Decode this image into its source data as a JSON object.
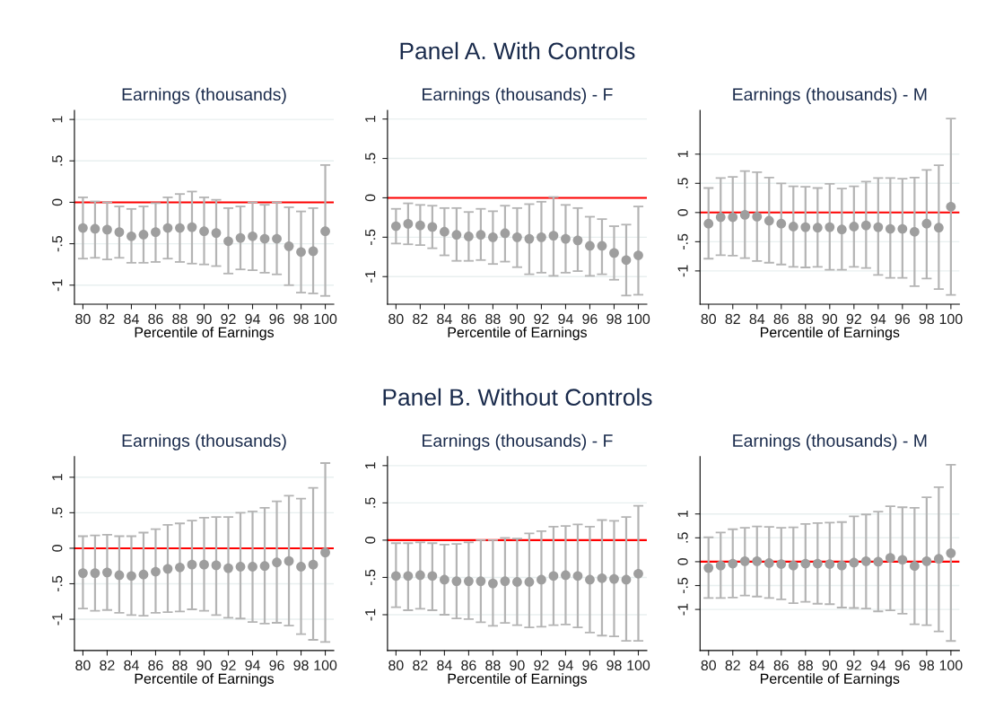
{
  "chart_data": [
    {
      "type": "scatter",
      "title": "Earnings (thousands)",
      "xlabel": "Percentile of Earnings",
      "color": "#9e9e9e",
      "marker": "circle",
      "grid": "y",
      "x": [
        80,
        81,
        82,
        83,
        84,
        85,
        86,
        87,
        88,
        89,
        90,
        91,
        92,
        93,
        94,
        95,
        96,
        97,
        98,
        99,
        100
      ],
      "values": [
        -0.31,
        -0.32,
        -0.33,
        -0.36,
        -0.41,
        -0.39,
        -0.36,
        -0.31,
        -0.31,
        -0.3,
        -0.35,
        -0.37,
        -0.47,
        -0.43,
        -0.41,
        -0.44,
        -0.44,
        -0.53,
        -0.6,
        -0.59,
        -0.35
      ],
      "errors": [
        [
          -0.68,
          0.06
        ],
        [
          -0.67,
          0.01
        ],
        [
          -0.69,
          0.0
        ],
        [
          -0.67,
          -0.05
        ],
        [
          -0.73,
          -0.08
        ],
        [
          -0.73,
          -0.05
        ],
        [
          -0.72,
          -0.01
        ],
        [
          -0.68,
          0.06
        ],
        [
          -0.72,
          0.1
        ],
        [
          -0.74,
          0.13
        ],
        [
          -0.75,
          0.06
        ],
        [
          -0.77,
          0.03
        ],
        [
          -0.86,
          -0.07
        ],
        [
          -0.81,
          -0.05
        ],
        [
          -0.82,
          0.0
        ],
        [
          -0.85,
          -0.03
        ],
        [
          -0.87,
          0.0
        ],
        [
          -1.0,
          -0.06
        ],
        [
          -1.09,
          -0.11
        ],
        [
          -1.1,
          -0.07
        ],
        [
          -1.13,
          0.45
        ]
      ],
      "xlim": [
        79.3,
        100.7
      ],
      "xticks": [
        80,
        82,
        84,
        86,
        88,
        90,
        92,
        94,
        96,
        98,
        100
      ],
      "ylim": [
        -1.23,
        1.11
      ],
      "yticks": [
        {
          "value": -1,
          "label": "-1"
        },
        {
          "value": -0.5,
          "label": "-.5"
        },
        0,
        {
          "value": 0.5,
          "label": ".5"
        },
        1
      ],
      "ref_lines": [
        {
          "axis": "y",
          "value": 0,
          "color": "#ff0000"
        }
      ]
    },
    {
      "type": "scatter",
      "title": "Earnings (thousands) - F",
      "xlabel": "Percentile of Earnings",
      "color": "#9e9e9e",
      "marker": "circle",
      "grid": "y",
      "annotations": [
        "Panel A. With Controls"
      ],
      "x": [
        80,
        81,
        82,
        83,
        84,
        85,
        86,
        87,
        88,
        89,
        90,
        91,
        92,
        93,
        94,
        95,
        96,
        97,
        98,
        99,
        100
      ],
      "values": [
        -0.36,
        -0.33,
        -0.35,
        -0.37,
        -0.43,
        -0.47,
        -0.49,
        -0.47,
        -0.5,
        -0.45,
        -0.5,
        -0.52,
        -0.5,
        -0.48,
        -0.52,
        -0.54,
        -0.61,
        -0.61,
        -0.7,
        -0.79,
        -0.73
      ],
      "errors": [
        [
          -0.58,
          -0.14
        ],
        [
          -0.59,
          -0.07
        ],
        [
          -0.6,
          -0.09
        ],
        [
          -0.64,
          -0.1
        ],
        [
          -0.73,
          -0.13
        ],
        [
          -0.8,
          -0.13
        ],
        [
          -0.8,
          -0.18
        ],
        [
          -0.79,
          -0.14
        ],
        [
          -0.84,
          -0.17
        ],
        [
          -0.81,
          -0.1
        ],
        [
          -0.88,
          -0.13
        ],
        [
          -0.97,
          -0.08
        ],
        [
          -0.95,
          -0.05
        ],
        [
          -0.99,
          0.01
        ],
        [
          -0.95,
          -0.09
        ],
        [
          -0.93,
          -0.13
        ],
        [
          -0.99,
          -0.24
        ],
        [
          -0.97,
          -0.27
        ],
        [
          -1.04,
          -0.36
        ],
        [
          -1.24,
          -0.34
        ],
        [
          -1.23,
          -0.11
        ]
      ],
      "xlim": [
        79.3,
        100.7
      ],
      "xticks": [
        80,
        82,
        84,
        86,
        88,
        90,
        92,
        94,
        96,
        98,
        100
      ],
      "ylim": [
        -1.35,
        1.11
      ],
      "yticks": [
        {
          "value": -1,
          "label": "-1"
        },
        {
          "value": -0.5,
          "label": "-.5"
        },
        0,
        {
          "value": 0.5,
          "label": ".5"
        },
        1
      ],
      "ref_lines": [
        {
          "axis": "y",
          "value": 0,
          "color": "#ff0000"
        }
      ]
    },
    {
      "type": "scatter",
      "title": "Earnings (thousands) - M",
      "xlabel": "Percentile of Earnings",
      "color": "#9e9e9e",
      "marker": "circle",
      "grid": "y",
      "x": [
        80,
        81,
        82,
        83,
        84,
        85,
        86,
        87,
        88,
        89,
        90,
        91,
        92,
        93,
        94,
        95,
        96,
        97,
        98,
        99,
        100
      ],
      "values": [
        -0.19,
        -0.08,
        -0.08,
        -0.04,
        -0.07,
        -0.14,
        -0.19,
        -0.24,
        -0.25,
        -0.26,
        -0.25,
        -0.29,
        -0.24,
        -0.22,
        -0.25,
        -0.28,
        -0.28,
        -0.33,
        -0.19,
        -0.26,
        0.1
      ],
      "errors": [
        [
          -0.79,
          0.42
        ],
        [
          -0.73,
          0.59
        ],
        [
          -0.74,
          0.61
        ],
        [
          -0.78,
          0.71
        ],
        [
          -0.83,
          0.69
        ],
        [
          -0.86,
          0.6
        ],
        [
          -0.89,
          0.5
        ],
        [
          -0.93,
          0.45
        ],
        [
          -0.94,
          0.44
        ],
        [
          -0.93,
          0.42
        ],
        [
          -0.98,
          0.49
        ],
        [
          -0.98,
          0.41
        ],
        [
          -0.93,
          0.45
        ],
        [
          -0.95,
          0.53
        ],
        [
          -1.07,
          0.59
        ],
        [
          -1.12,
          0.59
        ],
        [
          -1.12,
          0.58
        ],
        [
          -1.26,
          0.6
        ],
        [
          -1.13,
          0.73
        ],
        [
          -1.31,
          0.81
        ],
        [
          -1.41,
          1.61
        ]
      ],
      "xlim": [
        79.3,
        100.7
      ],
      "xticks": [
        80,
        82,
        84,
        86,
        88,
        90,
        92,
        94,
        96,
        98,
        100
      ],
      "ylim": [
        -1.57,
        1.75
      ],
      "yticks": [
        {
          "value": -1,
          "label": "-1"
        },
        {
          "value": -0.5,
          "label": "-.5"
        },
        0,
        {
          "value": 0.5,
          "label": ".5"
        },
        1
      ],
      "ref_lines": [
        {
          "axis": "y",
          "value": 0,
          "color": "#ff0000"
        }
      ]
    },
    {
      "type": "scatter",
      "title": "Earnings (thousands)",
      "xlabel": "Percentile of Earnings",
      "color": "#9e9e9e",
      "marker": "circle",
      "grid": "y",
      "x": [
        80,
        81,
        82,
        83,
        84,
        85,
        86,
        87,
        88,
        89,
        90,
        91,
        92,
        93,
        94,
        95,
        96,
        97,
        98,
        99,
        100
      ],
      "values": [
        -0.35,
        -0.35,
        -0.34,
        -0.38,
        -0.39,
        -0.37,
        -0.33,
        -0.29,
        -0.27,
        -0.23,
        -0.23,
        -0.24,
        -0.28,
        -0.26,
        -0.26,
        -0.25,
        -0.2,
        -0.18,
        -0.26,
        -0.23,
        -0.06
      ],
      "errors": [
        [
          -0.85,
          0.17
        ],
        [
          -0.88,
          0.18
        ],
        [
          -0.87,
          0.19
        ],
        [
          -0.91,
          0.17
        ],
        [
          -0.94,
          0.17
        ],
        [
          -0.95,
          0.22
        ],
        [
          -0.91,
          0.27
        ],
        [
          -0.9,
          0.33
        ],
        [
          -0.89,
          0.35
        ],
        [
          -0.86,
          0.39
        ],
        [
          -0.88,
          0.43
        ],
        [
          -0.94,
          0.44
        ],
        [
          -0.98,
          0.44
        ],
        [
          -0.99,
          0.5
        ],
        [
          -1.04,
          0.52
        ],
        [
          -1.06,
          0.57
        ],
        [
          -1.05,
          0.66
        ],
        [
          -1.09,
          0.74
        ],
        [
          -1.21,
          0.7
        ],
        [
          -1.29,
          0.85
        ],
        [
          -1.32,
          1.2
        ]
      ],
      "xlim": [
        79.3,
        100.7
      ],
      "xticks": [
        80,
        82,
        84,
        86,
        88,
        90,
        92,
        94,
        96,
        98,
        100
      ],
      "ylim": [
        -1.44,
        1.29
      ],
      "yticks": [
        {
          "value": -1,
          "label": "-1"
        },
        {
          "value": -0.5,
          "label": "-.5"
        },
        0,
        {
          "value": 0.5,
          "label": ".5"
        },
        1
      ],
      "ref_lines": [
        {
          "axis": "y",
          "value": 0,
          "color": "#ff0000"
        }
      ]
    },
    {
      "type": "scatter",
      "title": "Earnings (thousands) - F",
      "xlabel": "Percentile of Earnings",
      "color": "#9e9e9e",
      "marker": "circle",
      "grid": "y",
      "annotations": [
        "Panel B. Without Controls"
      ],
      "x": [
        80,
        81,
        82,
        83,
        84,
        85,
        86,
        87,
        88,
        89,
        90,
        91,
        92,
        93,
        94,
        95,
        96,
        97,
        98,
        99,
        100
      ],
      "values": [
        -0.48,
        -0.48,
        -0.47,
        -0.48,
        -0.53,
        -0.55,
        -0.55,
        -0.55,
        -0.58,
        -0.55,
        -0.56,
        -0.56,
        -0.53,
        -0.48,
        -0.47,
        -0.48,
        -0.53,
        -0.51,
        -0.52,
        -0.53,
        -0.45
      ],
      "errors": [
        [
          -0.9,
          -0.04
        ],
        [
          -0.94,
          -0.04
        ],
        [
          -0.92,
          -0.03
        ],
        [
          -0.94,
          -0.04
        ],
        [
          -1.0,
          -0.06
        ],
        [
          -1.05,
          -0.05
        ],
        [
          -1.06,
          -0.03
        ],
        [
          -1.1,
          0.0
        ],
        [
          -1.15,
          0.0
        ],
        [
          -1.11,
          0.03
        ],
        [
          -1.14,
          0.02
        ],
        [
          -1.17,
          0.09
        ],
        [
          -1.16,
          0.12
        ],
        [
          -1.14,
          0.18
        ],
        [
          -1.13,
          0.19
        ],
        [
          -1.17,
          0.21
        ],
        [
          -1.24,
          0.18
        ],
        [
          -1.28,
          0.27
        ],
        [
          -1.29,
          0.26
        ],
        [
          -1.35,
          0.31
        ],
        [
          -1.35,
          0.46
        ]
      ],
      "xlim": [
        79.3,
        100.7
      ],
      "xticks": [
        80,
        82,
        84,
        86,
        88,
        90,
        92,
        94,
        96,
        98,
        100
      ],
      "ylim": [
        -1.48,
        1.12
      ],
      "yticks": [
        {
          "value": -1,
          "label": "-1"
        },
        {
          "value": -0.5,
          "label": "-.5"
        },
        0,
        {
          "value": 0.5,
          "label": ".5"
        },
        1
      ],
      "ref_lines": [
        {
          "axis": "y",
          "value": 0,
          "color": "#ff0000"
        }
      ]
    },
    {
      "type": "scatter",
      "title": "Earnings (thousands) - M",
      "xlabel": "Percentile of Earnings",
      "color": "#9e9e9e",
      "marker": "circle",
      "grid": "y",
      "x": [
        80,
        81,
        82,
        83,
        84,
        85,
        86,
        87,
        88,
        89,
        90,
        91,
        92,
        93,
        94,
        95,
        96,
        97,
        98,
        99,
        100
      ],
      "values": [
        -0.13,
        -0.08,
        -0.04,
        0.01,
        0.01,
        -0.03,
        -0.05,
        -0.08,
        -0.04,
        -0.04,
        -0.05,
        -0.08,
        -0.02,
        0.01,
        0.0,
        0.08,
        0.04,
        -0.09,
        0.01,
        0.06,
        0.18
      ],
      "errors": [
        [
          -0.76,
          0.51
        ],
        [
          -0.76,
          0.61
        ],
        [
          -0.75,
          0.68
        ],
        [
          -0.71,
          0.71
        ],
        [
          -0.73,
          0.74
        ],
        [
          -0.76,
          0.73
        ],
        [
          -0.79,
          0.71
        ],
        [
          -0.87,
          0.72
        ],
        [
          -0.84,
          0.79
        ],
        [
          -0.88,
          0.81
        ],
        [
          -0.89,
          0.82
        ],
        [
          -0.96,
          0.83
        ],
        [
          -0.97,
          0.95
        ],
        [
          -0.98,
          0.99
        ],
        [
          -1.04,
          1.05
        ],
        [
          -1.02,
          1.16
        ],
        [
          -1.09,
          1.14
        ],
        [
          -1.31,
          1.13
        ],
        [
          -1.33,
          1.35
        ],
        [
          -1.46,
          1.56
        ],
        [
          -1.66,
          2.03
        ]
      ],
      "xlim": [
        79.3,
        100.7
      ],
      "xticks": [
        80,
        82,
        84,
        86,
        88,
        90,
        92,
        94,
        96,
        98,
        100
      ],
      "ylim": [
        -1.86,
        2.2
      ],
      "yticks": [
        {
          "value": -1,
          "label": "-1"
        },
        {
          "value": -0.5,
          "label": "-.5"
        },
        0,
        {
          "value": 0.5,
          "label": ".5"
        },
        1
      ],
      "ref_lines": [
        {
          "axis": "y",
          "value": 0,
          "color": "#ff0000"
        }
      ]
    }
  ]
}
